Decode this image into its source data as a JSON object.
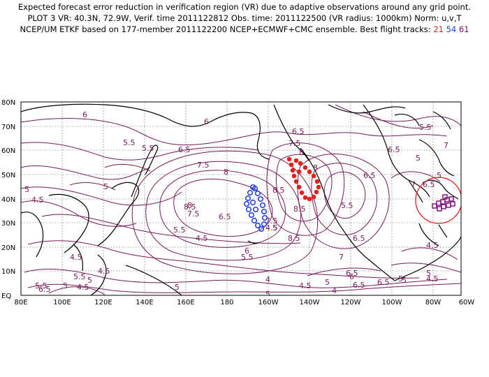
{
  "header": {
    "line1": "Expected forecast error reduction in verification region (VR) due to adaptive observations around any grid point.",
    "line2": "PLOT 3 VR: 40.3N, 72.9W, Verif. time 2011122812 Obs. time: 2011122500 (VR radius: 1000km) Norm: u,v,T",
    "line3_prefix": "NCEP/UM ETKF based on 177-member 2011122200 NCEP+ECMWF+CMC ensemble. Best flight tracks:",
    "track_ids": [
      "21",
      "54",
      "61"
    ]
  },
  "map": {
    "lon_labels": [
      "80E",
      "100E",
      "120E",
      "140E",
      "160E",
      "180",
      "160W",
      "140W",
      "120W",
      "100W",
      "80W",
      "60W"
    ],
    "lat_labels": [
      "EQ",
      "10N",
      "20N",
      "30N",
      "40N",
      "50N",
      "60N",
      "70N",
      "80N"
    ],
    "verification_region": {
      "lat": 40.3,
      "lon": "72.9W",
      "radius_km": 1000
    },
    "contour_labels": [
      "6",
      "5.5",
      "5.5",
      "6.5",
      "5",
      "7.5",
      "8",
      "6",
      "6.5",
      "7.5",
      "8",
      "8",
      "6.5",
      "6.5",
      "7",
      "5",
      "5",
      "4.5",
      "5",
      "8.5",
      "8.5",
      "8",
      "7.5",
      "6.5",
      "8.5",
      "8.5",
      "5.5",
      "5.5",
      "5",
      "5.5",
      "4.5",
      "6",
      "7",
      "6.5",
      "6",
      "6.5",
      "5.5",
      "7",
      "4.5",
      "4",
      "4.5",
      "5",
      "5",
      "5.5",
      "6.5",
      "4.5",
      "5",
      "4.5",
      "5",
      "5.5",
      "4.5",
      "5",
      "6.5",
      "5",
      "4",
      "5",
      "4.5",
      "4.5",
      "7.5",
      "6.5",
      "6.5",
      "5",
      "5.5"
    ],
    "colors": {
      "contour": "#7a1a5a",
      "coast": "#000000",
      "grid": "#9a9a9a",
      "track21": "#e8201b",
      "track54": "#1f3fe0",
      "track61": "#7a0a7a",
      "vr_circle": "#e8201b"
    }
  }
}
